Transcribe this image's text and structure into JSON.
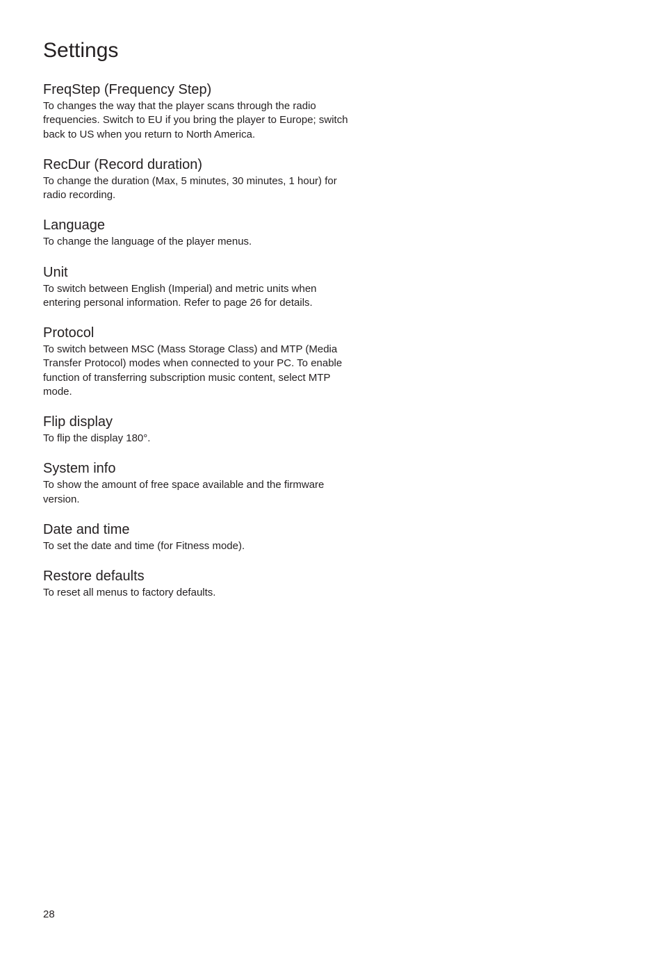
{
  "page": {
    "title": "Settings",
    "number": "28"
  },
  "sections": [
    {
      "heading": "FreqStep (Frequency Step)",
      "body": "To changes the way that the player scans through the radio frequencies. Switch to EU if you bring the player to Europe; switch back to US when you return to North America."
    },
    {
      "heading": "RecDur (Record duration)",
      "body": "To change the duration (Max, 5 minutes, 30 minutes, 1 hour) for radio recording."
    },
    {
      "heading": "Language",
      "body": "To change the language of the player menus."
    },
    {
      "heading": "Unit",
      "body": "To switch between English (Imperial) and metric units when entering personal information. Refer to page 26 for details."
    },
    {
      "heading": "Protocol",
      "body": "To switch between MSC (Mass Storage Class) and MTP (Media Transfer Protocol) modes when connected to your PC. To enable function of transferring subscription music content, select MTP mode."
    },
    {
      "heading": "Flip display",
      "body": "To flip the display 180°."
    },
    {
      "heading": "System info",
      "body": "To show the amount of free space available and the firmware version."
    },
    {
      "heading": "Date and time",
      "body": "To set the date and time (for Fitness mode)."
    },
    {
      "heading": "Restore defaults",
      "body": "To reset all menus to factory defaults."
    }
  ]
}
